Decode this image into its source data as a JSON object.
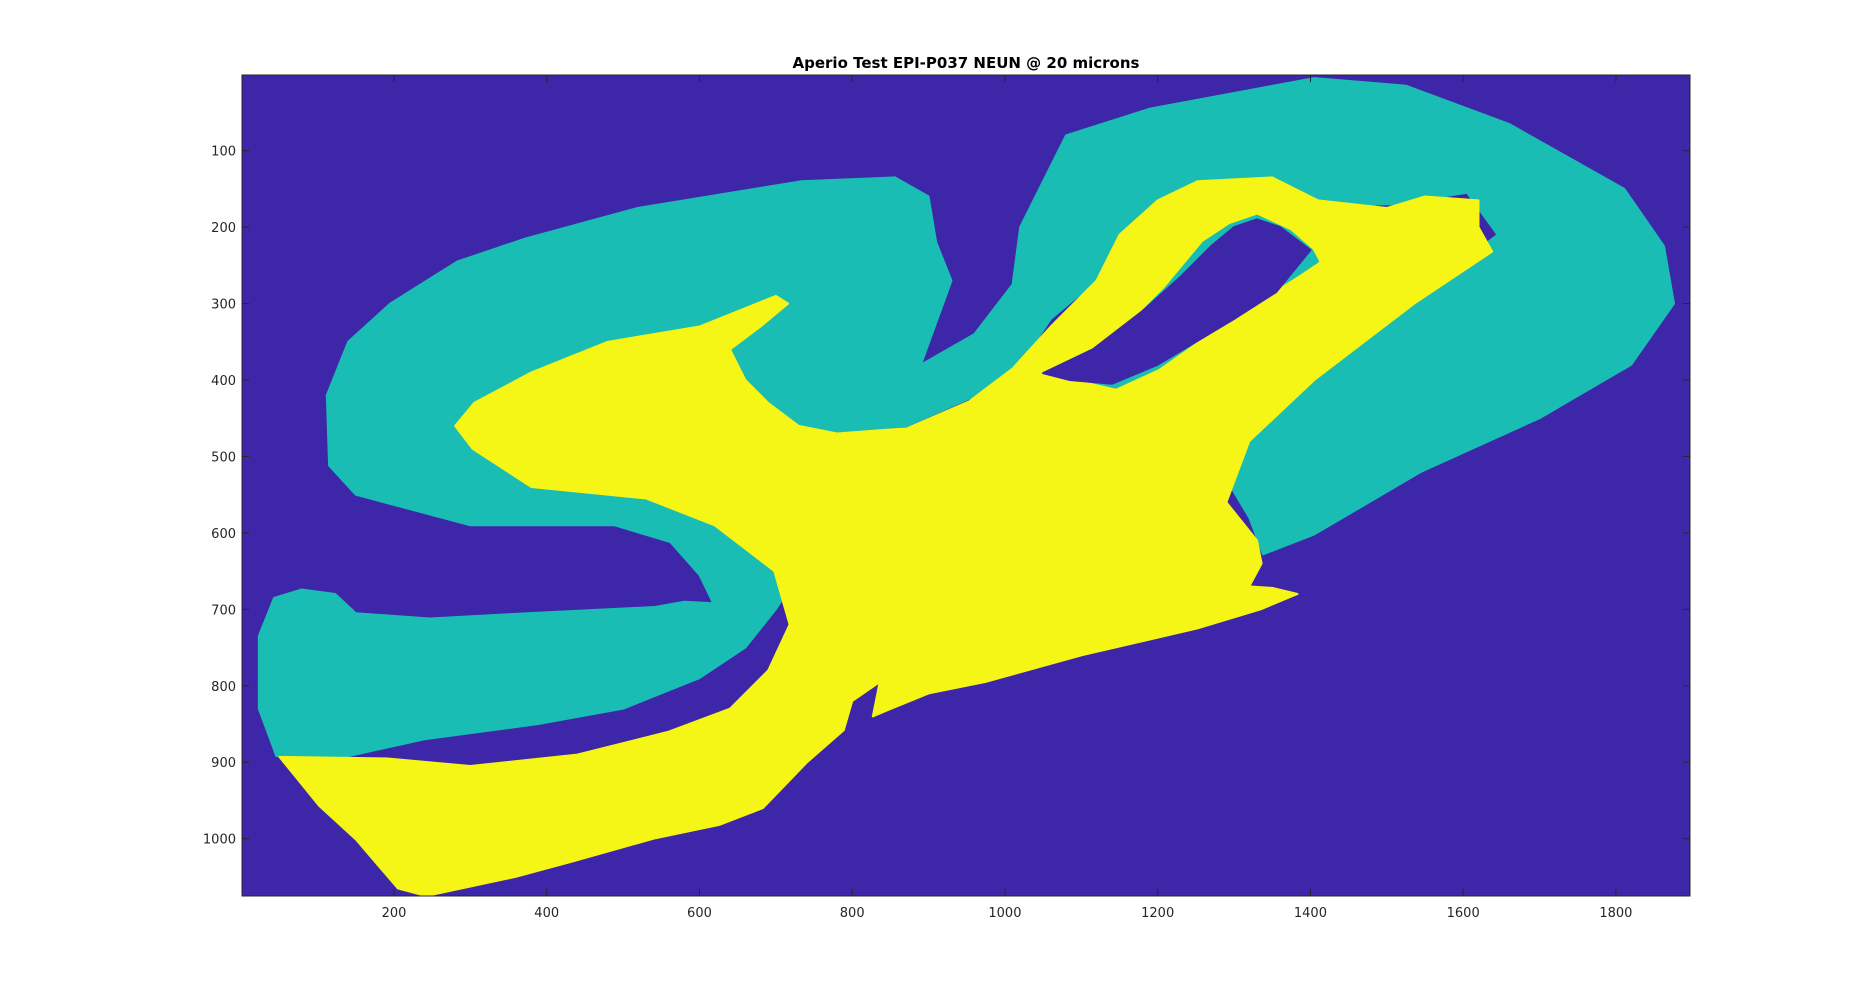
{
  "chart_data": {
    "type": "heatmap",
    "title": "Aperio Test EPI-P037 NEUN @ 20 microns",
    "xlabel": "",
    "ylabel": "",
    "xlim": [
      1,
      1897
    ],
    "ylim": [
      1,
      1075
    ],
    "y_direction": "reversed",
    "x_ticks": [
      200,
      400,
      600,
      800,
      1000,
      1200,
      1400,
      1600,
      1800
    ],
    "y_ticks": [
      100,
      200,
      300,
      400,
      500,
      600,
      700,
      800,
      900,
      1000
    ],
    "grid": false,
    "legend": "none",
    "classes": [
      {
        "color": "#3e26a8"
      },
      {
        "color": "#1abdb4"
      },
      {
        "color": "#f5f516"
      }
    ],
    "regions": [
      {
        "class": 1,
        "points": [
          [
            46,
            892
          ],
          [
            23,
            830
          ],
          [
            23,
            735
          ],
          [
            43,
            685
          ],
          [
            79,
            674
          ],
          [
            123,
            680
          ],
          [
            150,
            705
          ],
          [
            247,
            712
          ],
          [
            375,
            705
          ],
          [
            542,
            697
          ],
          [
            580,
            690
          ],
          [
            618,
            692
          ],
          [
            600,
            655
          ],
          [
            562,
            612
          ],
          [
            489,
            590
          ],
          [
            300,
            590
          ],
          [
            150,
            550
          ],
          [
            115,
            512
          ],
          [
            112,
            420
          ],
          [
            140,
            350
          ],
          [
            195,
            300
          ],
          [
            283,
            245
          ],
          [
            372,
            215
          ],
          [
            519,
            175
          ],
          [
            733,
            140
          ],
          [
            856,
            135
          ],
          [
            900,
            160
          ],
          [
            910,
            220
          ],
          [
            930,
            270
          ],
          [
            890,
            380
          ],
          [
            960,
            340
          ],
          [
            1010,
            275
          ],
          [
            1020,
            200
          ],
          [
            1080,
            80
          ],
          [
            1190,
            45
          ],
          [
            1405,
            5
          ],
          [
            1525,
            15
          ],
          [
            1660,
            65
          ],
          [
            1811,
            150
          ],
          [
            1863,
            225
          ],
          [
            1876,
            300
          ],
          [
            1820,
            380
          ],
          [
            1700,
            450
          ],
          [
            1545,
            520
          ],
          [
            1405,
            602
          ],
          [
            1338,
            628
          ],
          [
            1320,
            580
          ],
          [
            1290,
            530
          ],
          [
            1310,
            470
          ],
          [
            1400,
            380
          ],
          [
            1545,
            285
          ],
          [
            1645,
            210
          ],
          [
            1605,
            155
          ],
          [
            1510,
            170
          ],
          [
            1380,
            172
          ],
          [
            1300,
            145
          ],
          [
            1235,
            160
          ],
          [
            1150,
            215
          ],
          [
            1120,
            270
          ],
          [
            1060,
            320
          ],
          [
            1020,
            380
          ],
          [
            963,
            420
          ],
          [
            872,
            460
          ],
          [
            780,
            470
          ],
          [
            733,
            465
          ],
          [
            663,
            445
          ],
          [
            625,
            410
          ],
          [
            612,
            360
          ],
          [
            680,
            310
          ],
          [
            733,
            360
          ],
          [
            716,
            500
          ],
          [
            736,
            560
          ],
          [
            762,
            580
          ],
          [
            733,
            650
          ],
          [
            700,
            700
          ],
          [
            660,
            750
          ],
          [
            600,
            790
          ],
          [
            500,
            830
          ],
          [
            389,
            850
          ],
          [
            240,
            870
          ],
          [
            140,
            892
          ],
          [
            46,
            892
          ]
        ]
      },
      {
        "class": 2,
        "points": [
          [
            50,
            893
          ],
          [
            102,
            957
          ],
          [
            151,
            1002
          ],
          [
            205,
            1065
          ],
          [
            242,
            1075
          ],
          [
            359,
            1050
          ],
          [
            433,
            1030
          ],
          [
            540,
            1000
          ],
          [
            626,
            982
          ],
          [
            683,
            960
          ],
          [
            712,
            930
          ],
          [
            741,
            900
          ],
          [
            789,
            858
          ],
          [
            800,
            820
          ],
          [
            836,
            795
          ],
          [
            827,
            840
          ],
          [
            851,
            830
          ],
          [
            900,
            810
          ],
          [
            974,
            795
          ],
          [
            1101,
            760
          ],
          [
            1252,
            725
          ],
          [
            1335,
            700
          ],
          [
            1383,
            680
          ],
          [
            1350,
            672
          ],
          [
            1320,
            670
          ],
          [
            1336,
            640
          ],
          [
            1330,
            610
          ],
          [
            1290,
            560
          ],
          [
            1320,
            480
          ],
          [
            1405,
            400
          ],
          [
            1536,
            300
          ],
          [
            1638,
            232
          ],
          [
            1620,
            200
          ],
          [
            1620,
            165
          ],
          [
            1550,
            160
          ],
          [
            1500,
            175
          ],
          [
            1410,
            165
          ],
          [
            1350,
            135
          ],
          [
            1252,
            140
          ],
          [
            1200,
            165
          ],
          [
            1150,
            210
          ],
          [
            1120,
            270
          ],
          [
            1060,
            330
          ],
          [
            1010,
            385
          ],
          [
            953,
            428
          ],
          [
            872,
            463
          ],
          [
            780,
            470
          ],
          [
            730,
            460
          ],
          [
            690,
            430
          ],
          [
            660,
            400
          ],
          [
            640,
            360
          ],
          [
            680,
            330
          ],
          [
            716,
            300
          ],
          [
            700,
            290
          ],
          [
            600,
            330
          ],
          [
            480,
            350
          ],
          [
            380,
            390
          ],
          [
            305,
            430
          ],
          [
            280,
            460
          ],
          [
            303,
            490
          ],
          [
            380,
            540
          ],
          [
            530,
            555
          ],
          [
            620,
            590
          ],
          [
            698,
            650
          ],
          [
            718,
            720
          ],
          [
            690,
            780
          ],
          [
            640,
            830
          ],
          [
            560,
            860
          ],
          [
            440,
            890
          ],
          [
            300,
            905
          ],
          [
            190,
            895
          ],
          [
            50,
            893
          ]
        ]
      },
      {
        "class": 1,
        "points": [
          [
            1050,
            391
          ],
          [
            1115,
            360
          ],
          [
            1160,
            330
          ],
          [
            1210,
            280
          ],
          [
            1260,
            220
          ],
          [
            1295,
            197
          ],
          [
            1330,
            185
          ],
          [
            1373,
            205
          ],
          [
            1402,
            230
          ],
          [
            1410,
            245
          ],
          [
            1380,
            265
          ],
          [
            1340,
            290
          ],
          [
            1300,
            320
          ],
          [
            1250,
            350
          ],
          [
            1200,
            385
          ],
          [
            1145,
            410
          ],
          [
            1102,
            400
          ],
          [
            1050,
            391
          ]
        ]
      },
      {
        "class": 0,
        "points": [
          [
            1050,
            391
          ],
          [
            1115,
            360
          ],
          [
            1180,
            310
          ],
          [
            1230,
            265
          ],
          [
            1270,
            225
          ],
          [
            1300,
            200
          ],
          [
            1330,
            190
          ],
          [
            1360,
            200
          ],
          [
            1400,
            230
          ],
          [
            1355,
            285
          ],
          [
            1300,
            320
          ],
          [
            1250,
            350
          ],
          [
            1200,
            380
          ],
          [
            1140,
            405
          ],
          [
            1085,
            400
          ],
          [
            1050,
            391
          ]
        ]
      }
    ]
  }
}
